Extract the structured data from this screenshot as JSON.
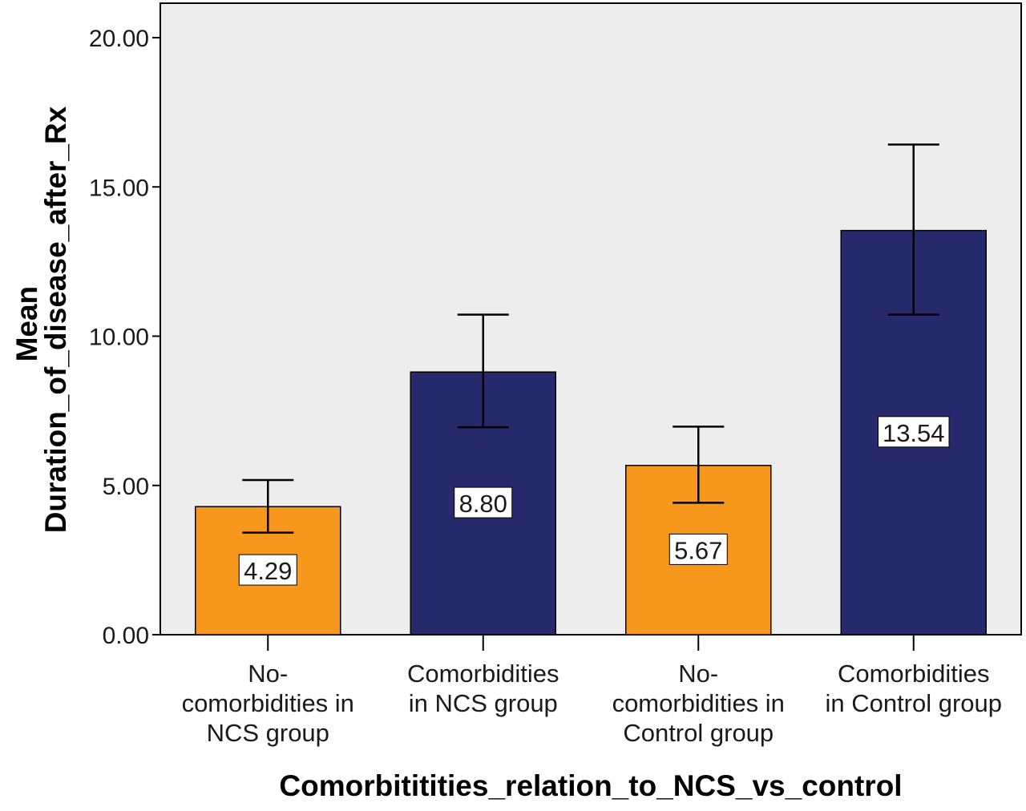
{
  "chart_data": {
    "type": "bar",
    "categories": [
      [
        "No-",
        "comorbidities in",
        "NCS group"
      ],
      [
        "Comorbidities",
        "in NCS group"
      ],
      [
        "No-",
        "comorbidities in",
        "Control group"
      ],
      [
        "Comorbidities",
        "in Control group"
      ]
    ],
    "values": [
      4.29,
      8.8,
      5.67,
      13.54
    ],
    "value_labels": [
      "4.29",
      "8.80",
      "5.67",
      "13.54"
    ],
    "error_low": [
      3.42,
      6.95,
      4.42,
      10.72
    ],
    "error_high": [
      5.18,
      10.72,
      6.97,
      16.42
    ],
    "bar_colors": [
      "#F7981D",
      "#262A6D",
      "#F7981D",
      "#262A6D"
    ],
    "plot_background": "#EDEDED",
    "ylim": [
      0,
      20
    ],
    "yticks": [
      0,
      5,
      10,
      15,
      20
    ],
    "ytick_labels": [
      "0.00",
      "5.00",
      "10.00",
      "15.00",
      "20.00"
    ],
    "ylabel_lines": [
      "Mean",
      "Duration_of_disease_after_Rx"
    ],
    "xlabel": "Comorbititities_relation_to_NCS_vs_control",
    "grid": false,
    "legend": "none"
  }
}
